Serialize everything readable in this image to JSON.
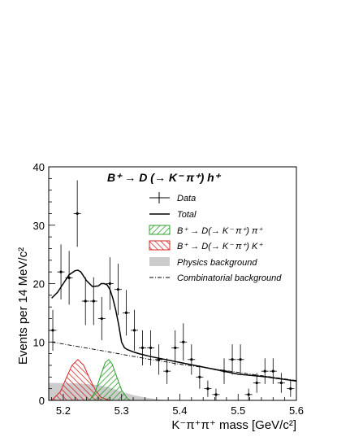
{
  "chart_data": {
    "type": "scatter",
    "title": "B⁺ → D (→ K⁻ π⁺) h⁺",
    "xlabel": "K⁻π⁺π⁺ mass [GeV/c²]",
    "ylabel": "Events per 14 MeV/c²",
    "xlim": [
      5.175,
      5.6
    ],
    "ylim": [
      0,
      40
    ],
    "x_ticks": [
      "5.2",
      "5.3",
      "5.4",
      "5.5",
      "5.6"
    ],
    "y_ticks": [
      "0",
      "10",
      "20",
      "30",
      "40"
    ],
    "grid": false,
    "legend_position": "top-right",
    "legend": [
      "Data",
      "Total",
      "B⁺ → D(→ K⁻ π⁺) π⁺",
      "B⁺ → D(→ K⁻ π⁺) K⁺",
      "Physics background",
      "Combinatorial background"
    ],
    "data_points": [
      {
        "x": 5.182,
        "y": 12,
        "err": 3.5
      },
      {
        "x": 5.196,
        "y": 22,
        "err": 4.7
      },
      {
        "x": 5.21,
        "y": 21,
        "err": 4.6
      },
      {
        "x": 5.224,
        "y": 32,
        "err": 5.7
      },
      {
        "x": 5.238,
        "y": 17,
        "err": 4.1
      },
      {
        "x": 5.252,
        "y": 17,
        "err": 4.1
      },
      {
        "x": 5.266,
        "y": 14,
        "err": 3.7
      },
      {
        "x": 5.28,
        "y": 20,
        "err": 4.5
      },
      {
        "x": 5.294,
        "y": 19,
        "err": 4.4
      },
      {
        "x": 5.308,
        "y": 15,
        "err": 3.9
      },
      {
        "x": 5.322,
        "y": 12,
        "err": 3.5
      },
      {
        "x": 5.336,
        "y": 9,
        "err": 3.0
      },
      {
        "x": 5.35,
        "y": 9,
        "err": 3.0
      },
      {
        "x": 5.364,
        "y": 7,
        "err": 2.6
      },
      {
        "x": 5.378,
        "y": 5,
        "err": 2.2
      },
      {
        "x": 5.392,
        "y": 9,
        "err": 3.0
      },
      {
        "x": 5.406,
        "y": 10,
        "err": 3.2
      },
      {
        "x": 5.42,
        "y": 7,
        "err": 2.6
      },
      {
        "x": 5.434,
        "y": 4,
        "err": 2.0
      },
      {
        "x": 5.448,
        "y": 2,
        "err": 1.4
      },
      {
        "x": 5.462,
        "y": 1,
        "err": 1.0
      },
      {
        "x": 5.476,
        "y": 5,
        "err": 2.2
      },
      {
        "x": 5.49,
        "y": 7,
        "err": 2.6
      },
      {
        "x": 5.504,
        "y": 7,
        "err": 2.6
      },
      {
        "x": 5.518,
        "y": 1,
        "err": 1.0
      },
      {
        "x": 5.532,
        "y": 3,
        "err": 1.7
      },
      {
        "x": 5.546,
        "y": 5,
        "err": 2.2
      },
      {
        "x": 5.56,
        "y": 5,
        "err": 2.2
      },
      {
        "x": 5.574,
        "y": 3,
        "err": 1.7
      },
      {
        "x": 5.59,
        "y": 2,
        "err": 1.4
      }
    ],
    "total_curve": {
      "x": [
        5.18,
        5.19,
        5.2,
        5.21,
        5.22,
        5.225,
        5.23,
        5.24,
        5.25,
        5.26,
        5.265,
        5.27,
        5.275,
        5.28,
        5.285,
        5.29,
        5.295,
        5.3,
        5.305,
        5.31,
        5.32,
        5.33,
        5.35,
        5.4,
        5.45,
        5.5,
        5.55,
        5.6
      ],
      "y": [
        17.5,
        18.5,
        20.0,
        21.5,
        22.2,
        22.3,
        22.0,
        20.5,
        19.5,
        19.6,
        20.0,
        20.0,
        19.8,
        19.0,
        17.5,
        15.5,
        13.0,
        10.0,
        9.0,
        8.7,
        8.3,
        8.0,
        7.5,
        6.5,
        5.5,
        4.5,
        4.0,
        3.3
      ]
    },
    "combinatorial_curve": {
      "x": [
        5.18,
        5.25,
        5.3,
        5.35,
        5.4,
        5.45,
        5.5,
        5.55,
        5.6
      ],
      "y": [
        10.0,
        8.8,
        7.9,
        7.0,
        6.2,
        5.5,
        4.8,
        4.1,
        3.4
      ]
    },
    "pi_component": {
      "x": [
        5.245,
        5.255,
        5.265,
        5.272,
        5.278,
        5.284,
        5.29,
        5.3,
        5.31,
        5.315
      ],
      "y": [
        0,
        1.5,
        4.5,
        6.5,
        7.0,
        6.2,
        4.5,
        1.8,
        0.3,
        0
      ]
    },
    "k_component": {
      "x": [
        5.18,
        5.195,
        5.205,
        5.215,
        5.225,
        5.235,
        5.245,
        5.255,
        5.265,
        5.28
      ],
      "y": [
        0,
        1.5,
        3.8,
        6.0,
        7.0,
        6.0,
        3.8,
        1.8,
        0.5,
        0
      ]
    },
    "physics_background": {
      "x": [
        5.175,
        5.18,
        5.23,
        5.26,
        5.28,
        5.3,
        5.32,
        5.34,
        5.36,
        5.38
      ],
      "y": [
        3.0,
        3.0,
        2.9,
        2.6,
        2.2,
        1.5,
        0.9,
        0.5,
        0.2,
        0
      ]
    },
    "colors": {
      "pi_fill": "#2ca02c",
      "k_fill": "#d62728",
      "physics_fill": "#cccccc",
      "curve": "#000000"
    }
  }
}
